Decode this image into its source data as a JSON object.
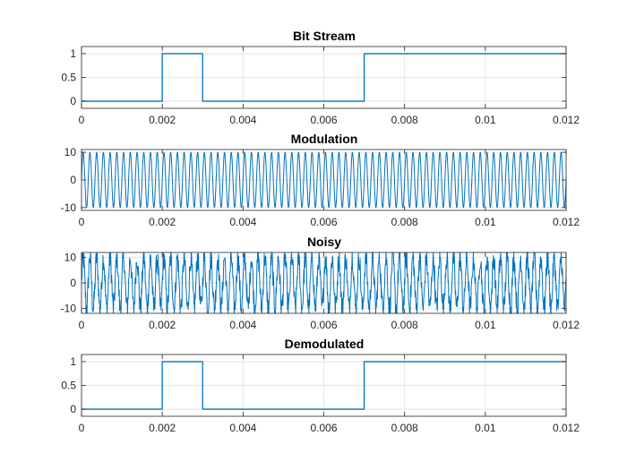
{
  "figure": {
    "background": "#ffffff",
    "line_color": "#0072bd",
    "grid": true
  },
  "chart_data": [
    {
      "type": "line",
      "title": "Bit Stream",
      "xlabel": "",
      "ylabel": "",
      "xlim": [
        0,
        0.012
      ],
      "ylim": [
        -0.15,
        1.15
      ],
      "xticks": [
        0,
        0.002,
        0.004,
        0.006,
        0.008,
        0.01,
        0.012
      ],
      "xtick_labels": [
        "0",
        "0.002",
        "0.004",
        "0.006",
        "0.008",
        "0.01",
        "0.012"
      ],
      "yticks": [
        0,
        0.5,
        1
      ],
      "ytick_labels": [
        "0",
        "0.5",
        "1"
      ],
      "signal": "step",
      "x": [
        0,
        0.002,
        0.002,
        0.003,
        0.003,
        0.007,
        0.007,
        0.012
      ],
      "y": [
        0,
        0,
        1,
        1,
        0,
        0,
        1,
        1
      ]
    },
    {
      "type": "line",
      "title": "Modulation",
      "xlabel": "",
      "ylabel": "",
      "xlim": [
        0,
        0.012
      ],
      "ylim": [
        -11,
        11
      ],
      "xticks": [
        0,
        0.002,
        0.004,
        0.006,
        0.008,
        0.01,
        0.012
      ],
      "xtick_labels": [
        "0",
        "0.002",
        "0.004",
        "0.006",
        "0.008",
        "0.01",
        "0.012"
      ],
      "yticks": [
        -10,
        0,
        10
      ],
      "ytick_labels": [
        "-10",
        "0",
        "10"
      ],
      "signal": "sinusoid",
      "amplitude": 10,
      "frequency_hz": 6000
    },
    {
      "type": "line",
      "title": "Noisy",
      "xlabel": "",
      "ylabel": "",
      "xlim": [
        0,
        0.012
      ],
      "ylim": [
        -12,
        12
      ],
      "xticks": [
        0,
        0.002,
        0.004,
        0.006,
        0.008,
        0.01,
        0.012
      ],
      "xtick_labels": [
        "0",
        "0.002",
        "0.004",
        "0.006",
        "0.008",
        "0.01",
        "0.012"
      ],
      "yticks": [
        -10,
        0,
        10
      ],
      "ytick_labels": [
        "-10",
        "0",
        "10"
      ],
      "signal": "noisy-sinusoid",
      "amplitude": 10,
      "frequency_hz": 6000,
      "noise_level": 3
    },
    {
      "type": "line",
      "title": "Demodulated",
      "xlabel": "",
      "ylabel": "",
      "xlim": [
        0,
        0.012
      ],
      "ylim": [
        -0.15,
        1.15
      ],
      "xticks": [
        0,
        0.002,
        0.004,
        0.006,
        0.008,
        0.01,
        0.012
      ],
      "xtick_labels": [
        "0",
        "0.002",
        "0.004",
        "0.006",
        "0.008",
        "0.01",
        "0.012"
      ],
      "yticks": [
        0,
        0.5,
        1
      ],
      "ytick_labels": [
        "0",
        "0.5",
        "1"
      ],
      "signal": "step",
      "x": [
        0,
        0.002,
        0.002,
        0.003,
        0.003,
        0.007,
        0.007,
        0.012
      ],
      "y": [
        0,
        0,
        1,
        1,
        0,
        0,
        1,
        1
      ]
    }
  ]
}
